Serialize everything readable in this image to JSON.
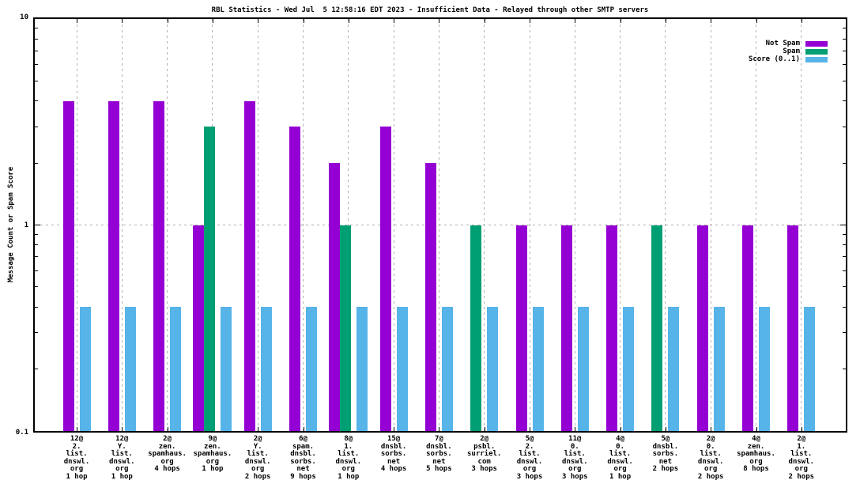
{
  "chart_data": {
    "type": "bar",
    "title": "RBL Statistics - Wed Jul  5 12:58:16 EDT 2023 - Insufficient Data - Relayed through other SMTP servers",
    "ylabel": "Message Count or Spam Score",
    "xlabel": "",
    "y_scale": "log",
    "ylim": [
      0.1,
      10
    ],
    "yticks": [
      "10",
      "1",
      "0.1"
    ],
    "grid": {
      "horizontal_line_at": 1,
      "vertical_lines": "at each category center",
      "style": "dotted gray"
    },
    "legend_position": "top-right",
    "legend": [
      {
        "label": "Not Spam",
        "color": "#9400D3"
      },
      {
        "label": "Spam",
        "color": "#009E73"
      },
      {
        "label": "Score (0..1)",
        "color": "#56B4E9"
      }
    ],
    "categories": [
      [
        "12@",
        "2.",
        "list.",
        "dnswl.",
        "org",
        "1 hop"
      ],
      [
        "12@",
        "Y.",
        "list.",
        "dnswl.",
        "org",
        "1 hop"
      ],
      [
        "2@",
        "zen.",
        "spamhaus.",
        "org",
        "4 hops"
      ],
      [
        "9@",
        "zen.",
        "spamhaus.",
        "org",
        "1 hop"
      ],
      [
        "2@",
        "Y.",
        "list.",
        "dnswl.",
        "org",
        "2 hops"
      ],
      [
        "6@",
        "spam.",
        "dnsbl.",
        "sorbs.",
        "net",
        "9 hops"
      ],
      [
        "8@",
        "1.",
        "list.",
        "dnswl.",
        "org",
        "1 hop"
      ],
      [
        "15@",
        "dnsbl.",
        "sorbs.",
        "net",
        "4 hops"
      ],
      [
        "7@",
        "dnsbl.",
        "sorbs.",
        "net",
        "5 hops"
      ],
      [
        "2@",
        "psbl.",
        "surriel.",
        "com",
        "3 hops"
      ],
      [
        "5@",
        "2.",
        "list.",
        "dnswl.",
        "org",
        "3 hops"
      ],
      [
        "11@",
        "0.",
        "list.",
        "dnswl.",
        "org",
        "3 hops"
      ],
      [
        "4@",
        "0.",
        "list.",
        "dnswl.",
        "org",
        "1 hop"
      ],
      [
        "5@",
        "dnsbl.",
        "sorbs.",
        "net",
        "2 hops"
      ],
      [
        "2@",
        "0.",
        "list.",
        "dnswl.",
        "org",
        "2 hops"
      ],
      [
        "4@",
        "zen.",
        "spamhaus.",
        "org",
        "8 hops"
      ],
      [
        "2@",
        "1.",
        "list.",
        "dnswl.",
        "org",
        "2 hops"
      ]
    ],
    "series": [
      {
        "name": "Not Spam",
        "color": "#9400D3",
        "values": [
          4,
          4,
          4,
          1,
          4,
          3,
          2,
          3,
          2,
          null,
          1,
          1,
          1,
          null,
          1,
          1,
          1
        ]
      },
      {
        "name": "Spam",
        "color": "#009E73",
        "values": [
          null,
          null,
          null,
          3,
          null,
          null,
          1,
          null,
          null,
          1,
          null,
          null,
          null,
          1,
          null,
          null,
          null
        ]
      },
      {
        "name": "Score (0..1)",
        "color": "#56B4E9",
        "values": [
          0.4,
          0.4,
          0.4,
          0.4,
          0.4,
          0.4,
          0.4,
          0.4,
          0.4,
          0.4,
          0.4,
          0.4,
          0.4,
          0.4,
          0.4,
          0.4,
          0.4
        ]
      }
    ]
  }
}
